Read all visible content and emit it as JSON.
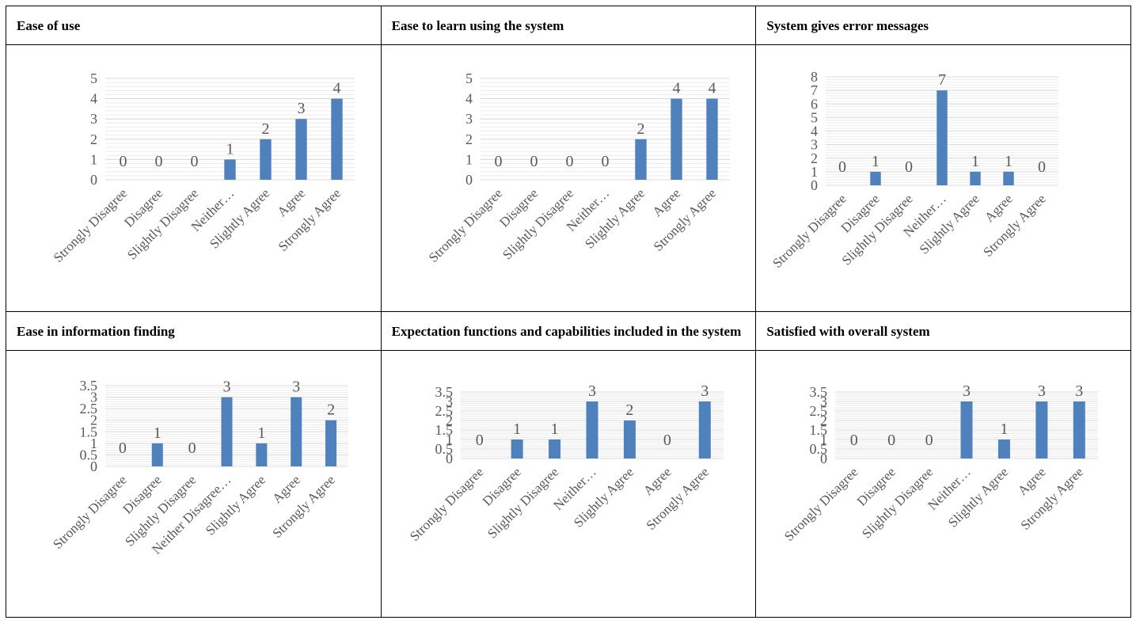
{
  "colors": {
    "bar": "#4f81bd",
    "grid": "#d9d9d9",
    "text": "#595959"
  },
  "chart_data": [
    {
      "type": "bar",
      "title": "Ease of use",
      "categories": [
        "Strongly Disagree",
        "Disagree",
        "Slightly Disagree",
        "Neither…",
        "Slightly Agree",
        "Agree",
        "Strongly Agree"
      ],
      "values": [
        0,
        0,
        0,
        1,
        2,
        3,
        4
      ],
      "ylim": [
        0,
        5
      ],
      "yticks": [
        "0",
        "1",
        "2",
        "3",
        "4",
        "5"
      ],
      "grid": true
    },
    {
      "type": "bar",
      "title": "Ease to learn using the system",
      "categories": [
        "Strongly Disagree",
        "Disagree",
        "Slightly Disagree",
        "Neither…",
        "Slightly Agree",
        "Agree",
        "Strongly Agree"
      ],
      "values": [
        0,
        0,
        0,
        0,
        2,
        4,
        4
      ],
      "ylim": [
        0,
        5
      ],
      "yticks": [
        "0",
        "1",
        "2",
        "3",
        "4",
        "5"
      ],
      "grid": true
    },
    {
      "type": "bar",
      "title": "System gives error messages",
      "categories": [
        "Strongly Disagree",
        "Disagree",
        "Slightly Disagree",
        "Neither…",
        "Slightly Agree",
        "Agree",
        "Strongly Agree"
      ],
      "values": [
        0,
        1,
        0,
        7,
        1,
        1,
        0
      ],
      "ylim": [
        0,
        8
      ],
      "yticks": [
        "0",
        "1",
        "2",
        "3",
        "4",
        "5",
        "6",
        "7",
        "8"
      ],
      "grid": true
    },
    {
      "type": "bar",
      "title": "Ease in information finding",
      "categories": [
        "Strongly Disagree",
        "Disagree",
        "Slightly Disagree",
        "Neither Disagree…",
        "Slightly Agree",
        "Agree",
        "Strongly Agree"
      ],
      "values": [
        0,
        1,
        0,
        3,
        1,
        3,
        2
      ],
      "ylim": [
        0,
        3.5
      ],
      "yticks": [
        "0",
        "0.5",
        "1",
        "1.5",
        "2",
        "2.5",
        "3",
        "3.5"
      ],
      "grid": true
    },
    {
      "type": "bar",
      "title": "Expectation functions and capabilities included in the system",
      "categories": [
        "Strongly Disagree",
        "Disagree",
        "Slightly Disagree",
        "Neither…",
        "Slightly Agree",
        "Agree",
        "Strongly Agree"
      ],
      "values": [
        0,
        1,
        1,
        3,
        2,
        0,
        3
      ],
      "ylim": [
        0,
        3.5
      ],
      "yticks": [
        "0",
        "0.5",
        "1",
        "1.5",
        "2",
        "2.5",
        "3",
        "3.5"
      ],
      "grid": true
    },
    {
      "type": "bar",
      "title": "Satisfied with overall system",
      "categories": [
        "Strongly Disagree",
        "Disagree",
        "Slightly Disagree",
        "Neither…",
        "Slightly Agree",
        "Agree",
        "Strongly Agree"
      ],
      "values": [
        0,
        0,
        0,
        3,
        1,
        3,
        3
      ],
      "ylim": [
        0,
        3.5
      ],
      "yticks": [
        "0",
        "0.5",
        "1",
        "1.5",
        "2",
        "2.5",
        "3",
        "3.5"
      ],
      "grid": true
    }
  ]
}
